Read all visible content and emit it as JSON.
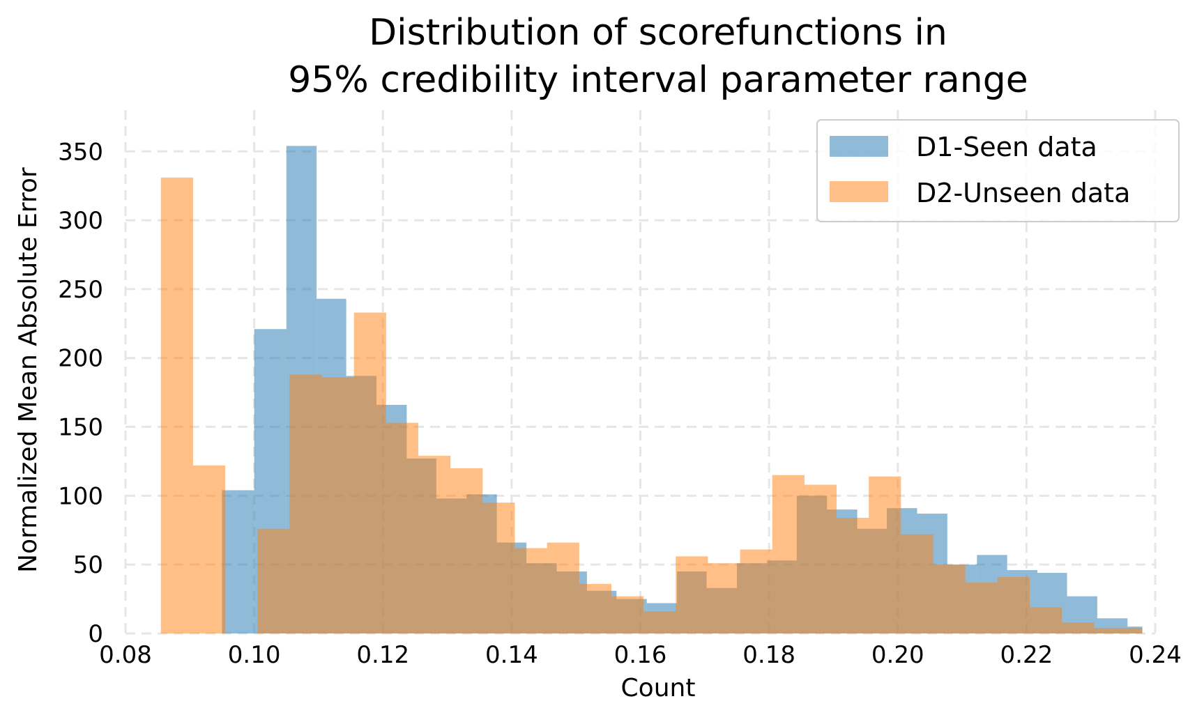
{
  "chart_data": {
    "type": "bar",
    "title": "Distribution of scorefunctions in\n95% credibility interval parameter range",
    "title_lines": [
      "Distribution of scorefunctions in",
      "95% credibility interval parameter range"
    ],
    "xlabel": "Count",
    "ylabel": "Normalized Mean Absolute Error",
    "xlim": [
      0.08,
      0.24
    ],
    "ylim": [
      0,
      350
    ],
    "xticks": [
      "0.08",
      "0.10",
      "0.12",
      "0.14",
      "0.16",
      "0.18",
      "0.20",
      "0.22",
      "0.24"
    ],
    "yticks": [
      "0",
      "50",
      "100",
      "150",
      "200",
      "250",
      "300",
      "350"
    ],
    "grid": true,
    "legend_position": "top-right",
    "series": [
      {
        "name": "D1-Seen data",
        "color": "#1f77b4",
        "opacity": 0.5,
        "bins": [
          [
            0.095,
            0.1,
            104
          ],
          [
            0.1,
            0.105,
            221
          ],
          [
            0.105,
            0.1097,
            354
          ],
          [
            0.1097,
            0.1143,
            243
          ],
          [
            0.1143,
            0.119,
            187
          ],
          [
            0.119,
            0.1237,
            166
          ],
          [
            0.1237,
            0.1283,
            127
          ],
          [
            0.1283,
            0.133,
            98
          ],
          [
            0.133,
            0.1377,
            101
          ],
          [
            0.1377,
            0.1423,
            66
          ],
          [
            0.1423,
            0.147,
            51
          ],
          [
            0.147,
            0.1517,
            45
          ],
          [
            0.1517,
            0.1563,
            31
          ],
          [
            0.1563,
            0.161,
            25
          ],
          [
            0.161,
            0.1657,
            22
          ],
          [
            0.1657,
            0.1703,
            45
          ],
          [
            0.1703,
            0.175,
            33
          ],
          [
            0.175,
            0.1797,
            51
          ],
          [
            0.1797,
            0.1843,
            53
          ],
          [
            0.1843,
            0.189,
            100
          ],
          [
            0.189,
            0.1937,
            90
          ],
          [
            0.1937,
            0.1983,
            76
          ],
          [
            0.1983,
            0.203,
            91
          ],
          [
            0.203,
            0.2077,
            87
          ],
          [
            0.2077,
            0.2123,
            50
          ],
          [
            0.2123,
            0.217,
            57
          ],
          [
            0.217,
            0.2217,
            46
          ],
          [
            0.2217,
            0.2263,
            44
          ],
          [
            0.2263,
            0.231,
            27
          ],
          [
            0.231,
            0.2357,
            11
          ],
          [
            0.2357,
            0.238,
            5
          ]
        ]
      },
      {
        "name": "D2-Unseen data",
        "color": "#ff7f0e",
        "opacity": 0.5,
        "bins": [
          [
            0.0855,
            0.0905,
            331
          ],
          [
            0.0905,
            0.0955,
            122
          ],
          [
            0.1005,
            0.1055,
            76
          ],
          [
            0.1055,
            0.1105,
            188
          ],
          [
            0.1105,
            0.1155,
            186
          ],
          [
            0.1155,
            0.1205,
            233
          ],
          [
            0.1205,
            0.1255,
            153
          ],
          [
            0.1255,
            0.1305,
            129
          ],
          [
            0.1305,
            0.1355,
            120
          ],
          [
            0.1355,
            0.1405,
            95
          ],
          [
            0.1405,
            0.1455,
            62
          ],
          [
            0.1455,
            0.1505,
            66
          ],
          [
            0.1505,
            0.1555,
            36
          ],
          [
            0.1555,
            0.1605,
            27
          ],
          [
            0.1605,
            0.1655,
            16
          ],
          [
            0.1655,
            0.1705,
            56
          ],
          [
            0.1705,
            0.1755,
            51
          ],
          [
            0.1755,
            0.1805,
            61
          ],
          [
            0.1805,
            0.1855,
            115
          ],
          [
            0.1855,
            0.1905,
            108
          ],
          [
            0.1905,
            0.1955,
            84
          ],
          [
            0.1955,
            0.2005,
            114
          ],
          [
            0.2005,
            0.2055,
            72
          ],
          [
            0.2055,
            0.2105,
            50
          ],
          [
            0.2105,
            0.2155,
            37
          ],
          [
            0.2155,
            0.2205,
            41
          ],
          [
            0.2205,
            0.2255,
            19
          ],
          [
            0.2255,
            0.2305,
            8
          ],
          [
            0.2305,
            0.238,
            4
          ]
        ]
      }
    ]
  }
}
